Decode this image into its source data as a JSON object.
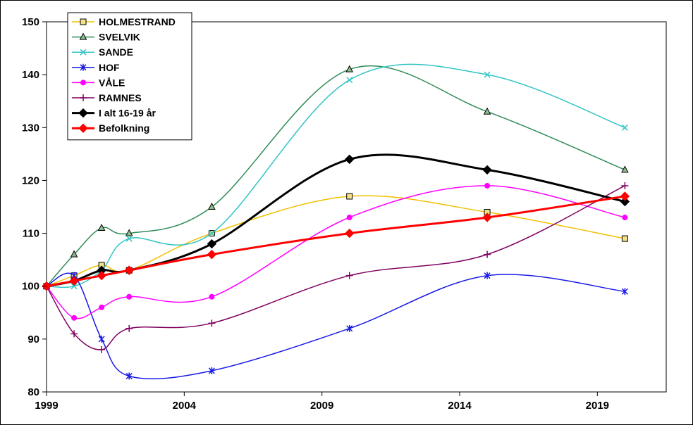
{
  "chart_data": {
    "type": "line",
    "title": "",
    "xlabel": "",
    "ylabel": "",
    "xlim": [
      1999,
      2021.5
    ],
    "ylim": [
      80,
      150
    ],
    "x_ticks": [
      "1999",
      "2004",
      "2009",
      "2014",
      "2019"
    ],
    "y_ticks": [
      "80",
      "90",
      "100",
      "110",
      "120",
      "130",
      "140",
      "150"
    ],
    "legend_position": "top-left",
    "x": [
      1999,
      2000,
      2001,
      2002,
      2005,
      2010,
      2015,
      2020
    ],
    "series": [
      {
        "name": "HOLMESTRAND",
        "color": "#F2BF00",
        "marker": "square",
        "width": 1.5,
        "values": [
          100,
          102,
          104,
          103,
          110,
          117,
          114,
          109
        ]
      },
      {
        "name": "SVELVIK",
        "color": "#2E8B57",
        "marker": "triangle",
        "width": 1.5,
        "values": [
          100,
          106,
          111,
          110,
          115,
          141,
          133,
          122
        ]
      },
      {
        "name": "SANDE",
        "color": "#33C4C4",
        "marker": "x",
        "width": 1.5,
        "values": [
          100,
          100,
          103,
          109,
          110,
          139,
          140,
          130
        ]
      },
      {
        "name": "HOF",
        "color": "#1A1AE6",
        "marker": "star",
        "width": 1.5,
        "values": [
          100,
          102,
          90,
          83,
          84,
          92,
          102,
          99
        ]
      },
      {
        "name": "VÅLE",
        "color": "#FF00FF",
        "marker": "circle",
        "width": 1.5,
        "values": [
          100,
          94,
          96,
          98,
          98,
          113,
          119,
          113
        ]
      },
      {
        "name": "RAMNES",
        "color": "#800060",
        "marker": "plus",
        "width": 1.5,
        "values": [
          100,
          91,
          88,
          92,
          93,
          102,
          106,
          119
        ]
      },
      {
        "name": "I alt 16-19 år",
        "color": "#000000",
        "marker": "diamond",
        "width": 3,
        "values": [
          100,
          101,
          103,
          103,
          108,
          124,
          122,
          116
        ]
      },
      {
        "name": "Befolkning",
        "color": "#FF0000",
        "marker": "diamond",
        "width": 3,
        "values": [
          100,
          101,
          102,
          103,
          106,
          110,
          113,
          117
        ]
      }
    ]
  }
}
